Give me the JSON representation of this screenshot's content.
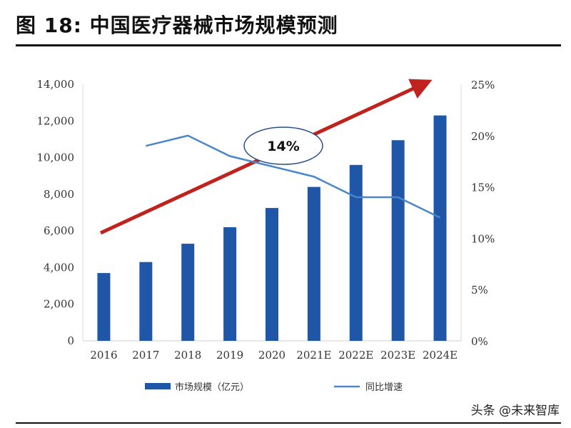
{
  "title": "图 18:  中国医疗器械市场规模预测",
  "watermark": "头条 @未来智库",
  "chart_data": {
    "type": "bar+line",
    "title": "",
    "categories": [
      "2016",
      "2017",
      "2018",
      "2019",
      "2020",
      "2021E",
      "2022E",
      "2023E",
      "2024E"
    ],
    "series": [
      {
        "name": "市场规模（亿元）",
        "type": "bar",
        "axis": "left",
        "color": "#1f56a8",
        "values": [
          3700,
          4300,
          5300,
          6200,
          7250,
          8400,
          9600,
          10950,
          12300
        ]
      },
      {
        "name": "同比增速",
        "type": "line",
        "axis": "right",
        "color": "#4a86c8",
        "values": [
          null,
          19,
          20,
          18,
          17,
          16,
          14,
          14,
          12
        ]
      }
    ],
    "y_left": {
      "range": [
        0,
        14000
      ],
      "ticks": [
        "0",
        "2,000",
        "4,000",
        "6,000",
        "8,000",
        "10,000",
        "12,000",
        "14,000"
      ]
    },
    "y_right": {
      "range": [
        0,
        25
      ],
      "ticks": [
        "0%",
        "5%",
        "10%",
        "15%",
        "20%",
        "25%"
      ]
    },
    "annotation": {
      "text": "14%",
      "arrow_color": "#c0231e"
    },
    "grid": false,
    "legend_position": "bottom"
  }
}
